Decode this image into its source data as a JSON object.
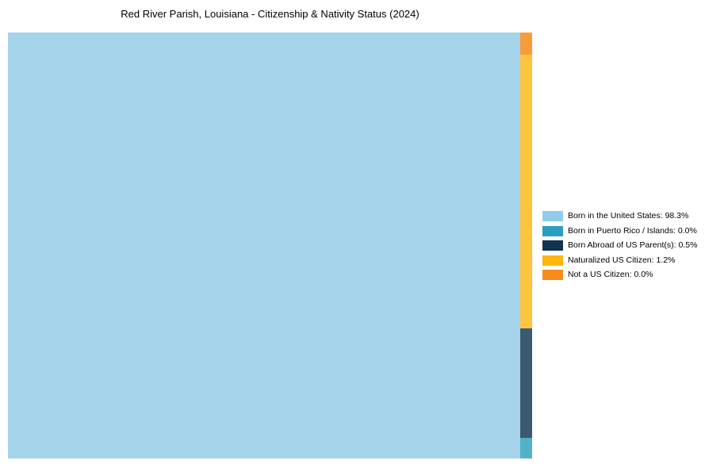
{
  "title": "Red River Parish, Louisiana - Citizenship & Nativity Status (2024)",
  "chart_data": {
    "type": "treemap",
    "title": "Red River Parish, Louisiana - Citizenship & Nativity Status (2024)",
    "categories": [
      "Born in the United States",
      "Born in Puerto Rico / Islands",
      "Born Abroad of US Parent(s)",
      "Naturalized US Citizen",
      "Not a US Citizen"
    ],
    "values": [
      98.3,
      0.0,
      0.5,
      1.2,
      0.0
    ],
    "units": "percent",
    "legend_position": "right",
    "layout": "single dominant cell at left (98.3%), remaining categories stacked in a narrow vertical strip on the right edge ordered top-to-bottom: Not a US Citizen, Naturalized US Citizen, Born Abroad of US Parent(s), Born in Puerto Rico / Islands",
    "cell_colors": {
      "born_in_the_united_states": "#a5d3e9",
      "born_in_puerto_rico_islands": "#4fb2c6",
      "born_abroad_of_us_parents": "#3a5a70",
      "naturalized_us_citizen": "#fdc53e",
      "not_a_us_citizen": "#f89c3a"
    },
    "legend_colors": {
      "born_in_the_united_states": "#90cce9",
      "born_in_puerto_rico_islands": "#2a9fbd",
      "born_abroad_of_us_parents": "#103350",
      "naturalized_us_citizen": "#feb70d",
      "not_a_us_citizen": "#f78b1c"
    }
  },
  "cells": {
    "born_us": {
      "color": "#a5d3e9"
    },
    "not_citizen": {
      "color": "#f89c3a"
    },
    "naturalized": {
      "color": "#fdc53e"
    },
    "born_abroad": {
      "color": "#3a5a70"
    },
    "puerto_rico": {
      "color": "#4fb2c6"
    }
  },
  "legend": {
    "items": [
      {
        "label": "Born in the United States: 98.3%",
        "color": "#90cce9"
      },
      {
        "label": "Born in Puerto Rico / Islands: 0.0%",
        "color": "#2a9fbd"
      },
      {
        "label": "Born Abroad of US Parent(s): 0.5%",
        "color": "#103350"
      },
      {
        "label": "Naturalized US Citizen: 1.2%",
        "color": "#feb70d"
      },
      {
        "label": "Not a US Citizen: 0.0%",
        "color": "#f78b1c"
      }
    ]
  }
}
